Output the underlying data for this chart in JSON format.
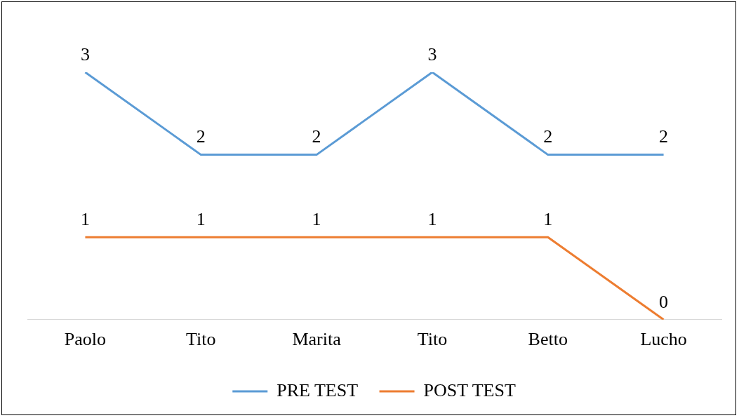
{
  "chart_data": {
    "type": "line",
    "categories": [
      "Paolo",
      "Tito",
      "Marita",
      "Tito",
      "Betto",
      "Lucho"
    ],
    "series": [
      {
        "name": "PRE TEST",
        "color": "#5b9bd5",
        "values": [
          3,
          2,
          2,
          3,
          2,
          2
        ]
      },
      {
        "name": "POST TEST",
        "color": "#ed7d31",
        "values": [
          1,
          1,
          1,
          1,
          1,
          0
        ]
      }
    ],
    "data_labels": true,
    "legend": "bottom",
    "grid": false,
    "marker": "none",
    "line_style": "solid"
  }
}
